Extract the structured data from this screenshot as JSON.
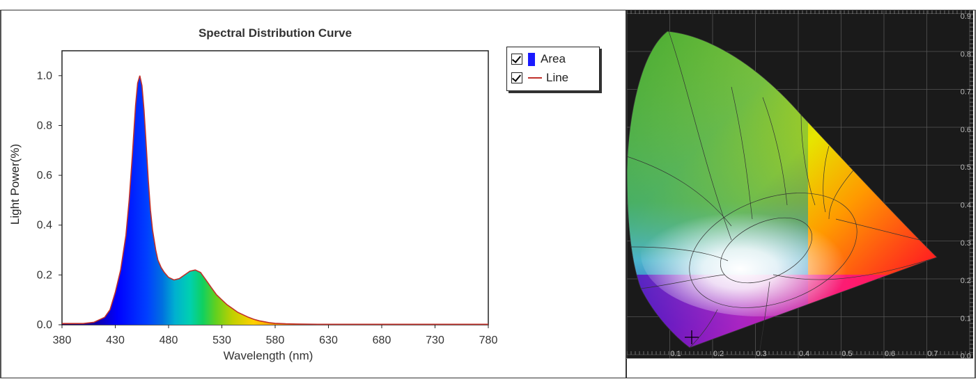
{
  "chart_data": {
    "type": "area",
    "title": "Spectral Distribution Curve",
    "xlabel": "Wavelength  (nm)",
    "ylabel": "Light Power(%)",
    "xlim": [
      380,
      780
    ],
    "ylim": [
      0,
      1.1
    ],
    "x_ticks": [
      "380",
      "430",
      "480",
      "530",
      "580",
      "630",
      "680",
      "730",
      "780"
    ],
    "y_ticks": [
      "0.0",
      "0.2",
      "0.4",
      "0.6",
      "0.8",
      "1.0"
    ],
    "series": [
      {
        "name": "Area",
        "x": [
          380,
          400,
          410,
          420,
          425,
          430,
          435,
          440,
          443,
          446,
          449,
          451,
          453,
          455,
          457,
          459,
          461,
          463,
          465,
          468,
          470,
          473,
          476,
          480,
          485,
          490,
          495,
          500,
          505,
          510,
          515,
          520,
          525,
          530,
          535,
          540,
          545,
          550,
          555,
          560,
          565,
          570,
          575,
          580,
          590,
          600,
          620,
          650,
          700,
          750,
          780
        ],
        "y": [
          0.005,
          0.005,
          0.01,
          0.03,
          0.06,
          0.13,
          0.22,
          0.36,
          0.5,
          0.68,
          0.88,
          0.97,
          1.0,
          0.96,
          0.86,
          0.72,
          0.58,
          0.46,
          0.38,
          0.3,
          0.26,
          0.23,
          0.21,
          0.19,
          0.18,
          0.185,
          0.2,
          0.215,
          0.22,
          0.21,
          0.18,
          0.15,
          0.12,
          0.1,
          0.08,
          0.065,
          0.05,
          0.04,
          0.03,
          0.022,
          0.016,
          0.012,
          0.008,
          0.006,
          0.004,
          0.003,
          0.002,
          0.002,
          0.002,
          0.002,
          0.002
        ]
      },
      {
        "name": "Line"
      }
    ],
    "legend_position": "top-right",
    "colors": {
      "line": "#c0302a",
      "area_legend": "#1a1aff"
    }
  },
  "legend": {
    "items": [
      {
        "label": "Area",
        "checked": true
      },
      {
        "label": "Line",
        "checked": true
      }
    ]
  },
  "cie_diagram": {
    "y_ticks": [
      "0.9",
      "0.8",
      "0.7",
      "0.6",
      "0.5",
      "0.4",
      "0.3",
      "0.2",
      "0.1",
      "0.0"
    ],
    "x_ticks": [
      "0.1",
      "0.2",
      "0.3",
      "0.4",
      "0.5",
      "0.6",
      "0.7"
    ],
    "background": "#1a1a1a"
  }
}
